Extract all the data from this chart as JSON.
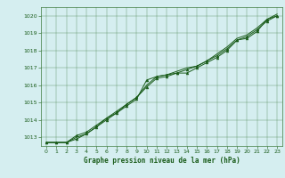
{
  "title": "Graphe pression niveau de la mer (hPa)",
  "background_color": "#d5eef0",
  "grid_color": "#3d7a3d",
  "line_color": "#1a5c1a",
  "marker_color": "#1a5c1a",
  "xlim": [
    -0.5,
    23.5
  ],
  "ylim": [
    1012.5,
    1020.5
  ],
  "yticks": [
    1013,
    1014,
    1015,
    1016,
    1017,
    1018,
    1019,
    1020
  ],
  "xticks": [
    0,
    1,
    2,
    3,
    4,
    5,
    6,
    7,
    8,
    9,
    10,
    11,
    12,
    13,
    14,
    15,
    16,
    17,
    18,
    19,
    20,
    21,
    22,
    23
  ],
  "series1": [
    1012.7,
    1012.7,
    1012.7,
    1012.9,
    1013.2,
    1013.6,
    1014.0,
    1014.4,
    1014.8,
    1015.2,
    1016.3,
    1016.5,
    1016.6,
    1016.7,
    1016.7,
    1017.0,
    1017.3,
    1017.6,
    1018.0,
    1018.6,
    1018.7,
    1019.1,
    1019.8,
    1020.0
  ],
  "series2": [
    1012.7,
    1012.7,
    1012.7,
    1013.1,
    1013.3,
    1013.7,
    1014.1,
    1014.5,
    1014.9,
    1015.3,
    1015.9,
    1016.4,
    1016.5,
    1016.7,
    1016.9,
    1017.1,
    1017.4,
    1017.7,
    1018.1,
    1018.6,
    1018.8,
    1019.2,
    1019.7,
    1020.0
  ],
  "series3": [
    1012.7,
    1012.7,
    1012.7,
    1013.0,
    1013.2,
    1013.6,
    1014.1,
    1014.4,
    1014.9,
    1015.3,
    1016.0,
    1016.5,
    1016.6,
    1016.8,
    1017.0,
    1017.1,
    1017.4,
    1017.8,
    1018.2,
    1018.7,
    1018.9,
    1019.3,
    1019.8,
    1020.1
  ],
  "tick_fontsize": 4.5,
  "label_fontsize": 5.5,
  "linewidth": 0.7,
  "markersize": 2.0
}
